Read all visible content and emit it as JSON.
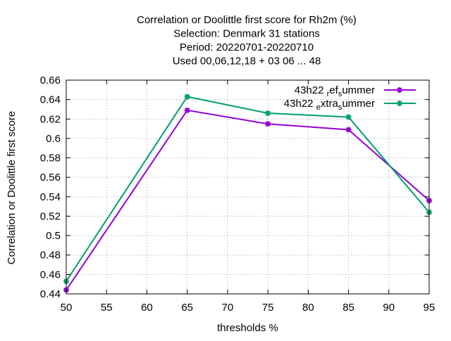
{
  "chart_data": {
    "type": "line",
    "title_lines": [
      "Correlation or Doolittle first score  for Rh2m (%)",
      "Selection: Denmark     31 stations",
      "Period: 20220701-20220710",
      "Used  00,06,12,18  + 03 06 ... 48"
    ],
    "xlabel": "thresholds %",
    "ylabel": "Correlation or Doolittle first score",
    "xlim": [
      50,
      95
    ],
    "ylim": [
      0.44,
      0.66
    ],
    "x_ticks": [
      50,
      55,
      60,
      65,
      70,
      75,
      80,
      85,
      90,
      95
    ],
    "y_ticks": [
      0.44,
      0.46,
      0.48,
      0.5,
      0.52,
      0.54,
      0.56,
      0.58,
      0.6,
      0.62,
      0.64,
      0.66
    ],
    "y_tick_labels": [
      "0.44",
      "0.46",
      "0.48",
      "0.5",
      "0.52",
      "0.54",
      "0.56",
      "0.58",
      "0.6",
      "0.62",
      "0.64",
      "0.66"
    ],
    "grid": true,
    "legend_position": "top-right",
    "series": [
      {
        "name": "43h22_ref_summer",
        "legend_main": "43h22",
        "legend_parts": [
          {
            "text": "r",
            "sub": true
          },
          {
            "text": "ef",
            "sub": false
          },
          {
            "text": "s",
            "sub": true
          },
          {
            "text": "ummer",
            "sub": false
          }
        ],
        "color": "#9400d3",
        "x": [
          50,
          65,
          75,
          85,
          95
        ],
        "y": [
          0.444,
          0.629,
          0.615,
          0.609,
          0.536
        ]
      },
      {
        "name": "43h22_extra_summer",
        "legend_main": "43h22",
        "legend_parts": [
          {
            "text": "e",
            "sub": true
          },
          {
            "text": "xtra",
            "sub": false
          },
          {
            "text": "s",
            "sub": true
          },
          {
            "text": "ummer",
            "sub": false
          }
        ],
        "color": "#009e73",
        "x": [
          50,
          65,
          75,
          85,
          95
        ],
        "y": [
          0.453,
          0.643,
          0.626,
          0.622,
          0.524
        ]
      }
    ]
  }
}
